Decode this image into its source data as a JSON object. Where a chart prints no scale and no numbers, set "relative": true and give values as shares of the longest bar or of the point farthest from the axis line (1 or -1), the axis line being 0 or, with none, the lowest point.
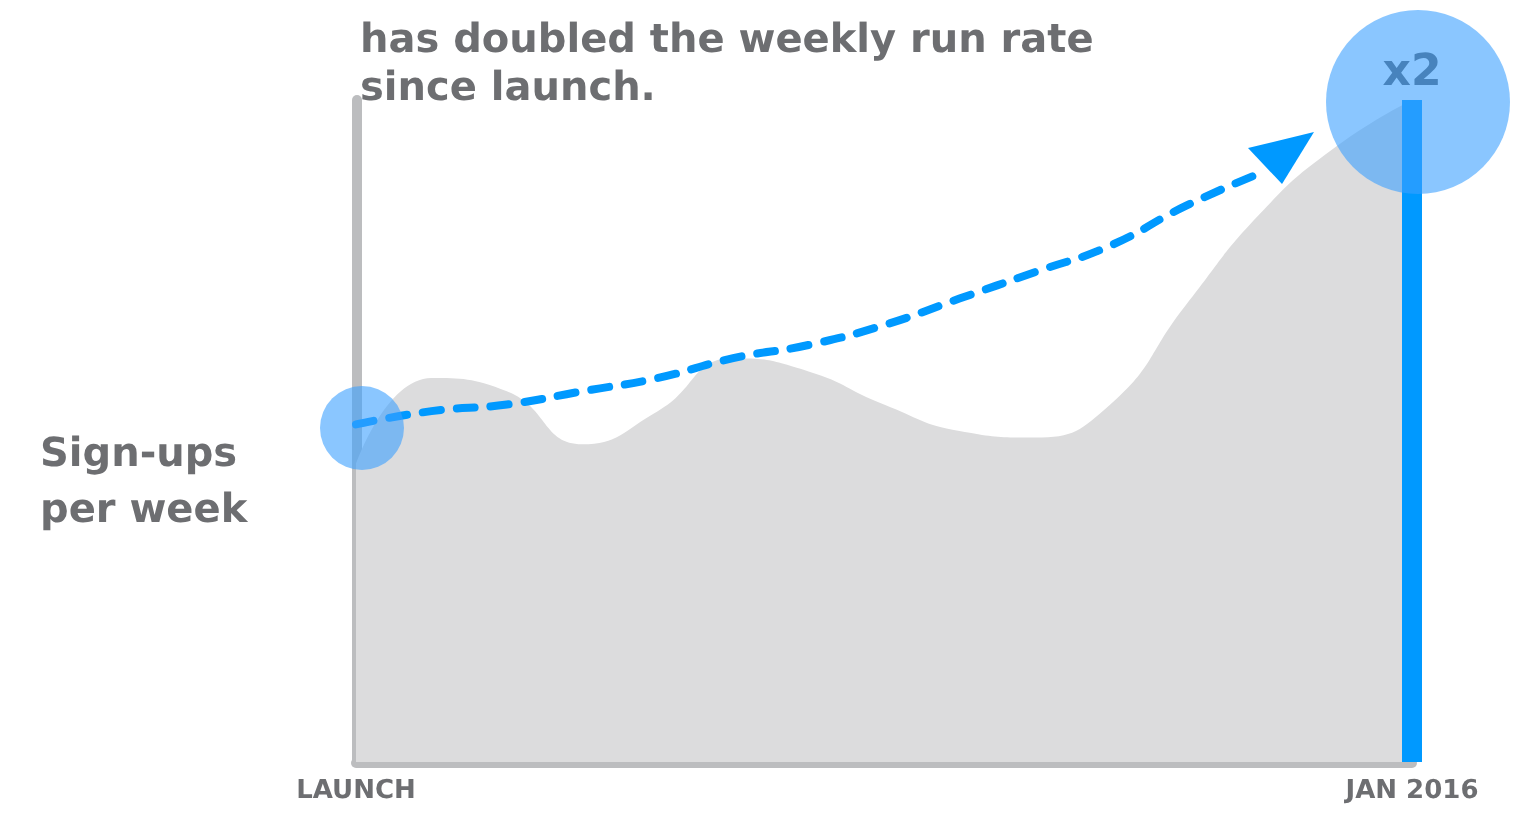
{
  "chart_data": {
    "type": "area",
    "title": "has doubled the weekly run rate since launch.",
    "ylabel": "Sign-ups per week",
    "categories": [
      "LAUNCH",
      null,
      null,
      null,
      null,
      null,
      null,
      null,
      null,
      null,
      null,
      null,
      null,
      null,
      "JAN 2016"
    ],
    "series": [
      {
        "color": "#dcdcdd",
        "values": [
          0.45,
          0.58,
          0.56,
          0.48,
          0.53,
          0.61,
          0.59,
          0.54,
          0.5,
          0.49,
          0.54,
          0.69,
          0.83,
          0.93,
          1
        ]
      },
      {
        "type": "line",
        "color": "#0099ff",
        "line_style": "dashed",
        "values": [
          0.51,
          0.53,
          0.54,
          0.56,
          0.58,
          0.61,
          0.63,
          0.66,
          0.7,
          0.74,
          0.78,
          0.84,
          0.89,
          null,
          null
        ]
      }
    ],
    "relative": true,
    "ref_lines": [
      {
        "axis": "x",
        "value": "JAN 2016",
        "color": "#0099ff"
      }
    ],
    "annotations": [
      {
        "text": "x2",
        "x": "JAN 2016",
        "y": 1
      }
    ],
    "grid": false,
    "marker": "none"
  }
}
